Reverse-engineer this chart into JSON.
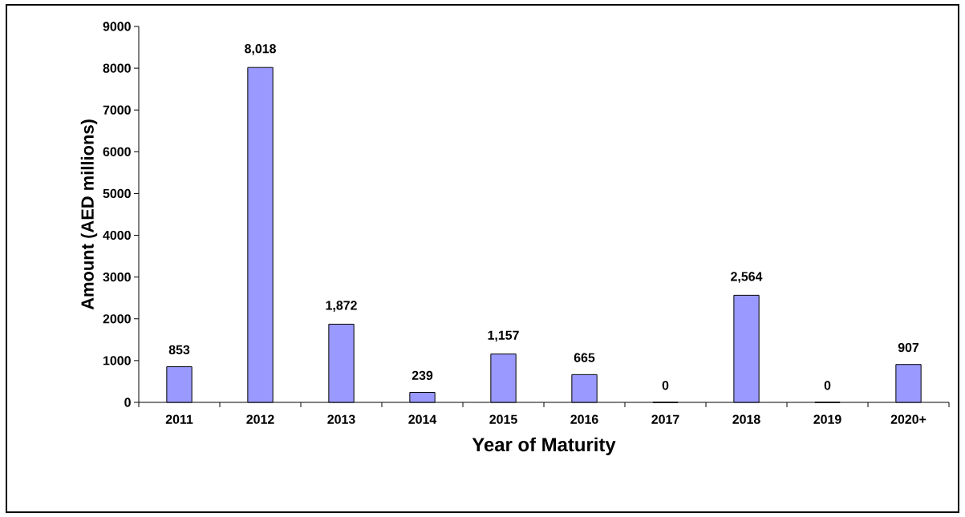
{
  "chart_data": {
    "type": "bar",
    "xlabel": "Year of Maturity",
    "ylabel": "Amount (AED millions)",
    "categories": [
      "2011",
      "2012",
      "2013",
      "2014",
      "2015",
      "2016",
      "2017",
      "2018",
      "2019",
      "2020+"
    ],
    "values": [
      853,
      8018,
      1872,
      239,
      1157,
      665,
      0,
      2564,
      0,
      907
    ],
    "value_labels": [
      "853",
      "8,018",
      "1,872",
      "239",
      "1,157",
      "665",
      "0",
      "2,564",
      "0",
      "907"
    ],
    "color": "#9999ff",
    "ylim": [
      0,
      9000
    ],
    "yticks": [
      0,
      1000,
      2000,
      3000,
      4000,
      5000,
      6000,
      7000,
      8000,
      9000
    ],
    "grid": false
  }
}
